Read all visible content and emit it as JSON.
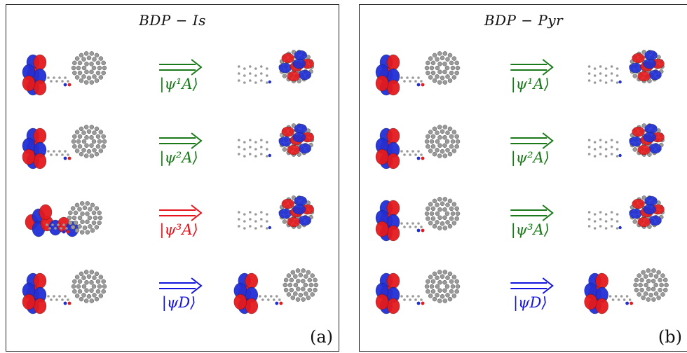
{
  "panels": [
    {
      "title": "BDP − Is",
      "label": "(a)",
      "rows": [
        {
          "state": "|ψ¹A⟩",
          "color": "#1a7a1a",
          "left": "bdp-orbital",
          "right": "c60-orbital"
        },
        {
          "state": "|ψ²A⟩",
          "color": "#1a7a1a",
          "left": "bdp-orbital",
          "right": "c60-orbital"
        },
        {
          "state": "|ψ³A⟩",
          "color": "#e8141c",
          "left": "bdp-extended-orbital",
          "right": "c60-orbital"
        },
        {
          "state": "|ψD⟩",
          "color": "#1414e0",
          "left": "bdp-orbital",
          "right": "bdp-orbital"
        }
      ]
    },
    {
      "title": "BDP − Pyr",
      "label": "(b)",
      "rows": [
        {
          "state": "|ψ¹A⟩",
          "color": "#1a7a1a",
          "left": "bdp-orbital",
          "right": "c60-orbital"
        },
        {
          "state": "|ψ²A⟩",
          "color": "#1a7a1a",
          "left": "bdp-orbital",
          "right": "c60-orbital"
        },
        {
          "state": "|ψ³A⟩",
          "color": "#1a7a1a",
          "left": "bdp-orbital",
          "right": "c60-orbital"
        },
        {
          "state": "|ψD⟩",
          "color": "#1414e0",
          "left": "bdp-orbital",
          "right": "bdp-orbital"
        }
      ]
    }
  ],
  "colors": {
    "orbital_positive": "#e41a1c",
    "orbital_negative": "#1f2fd6",
    "carbon": "#9a9a9a"
  }
}
